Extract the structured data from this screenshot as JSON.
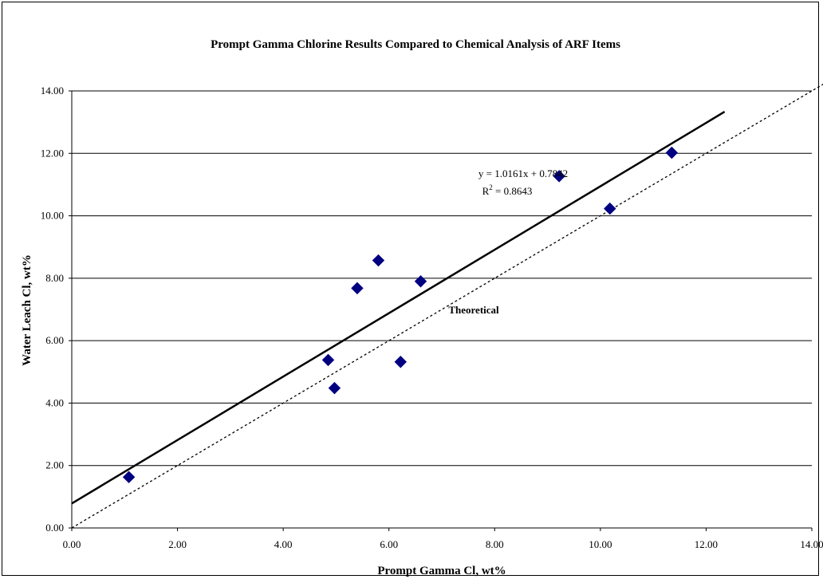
{
  "chart_data": {
    "type": "scatter",
    "title": "Prompt Gamma Chlorine Results Compared to Chemical Analysis of ARF Items",
    "xlabel": "Prompt Gamma Cl, wt%",
    "ylabel": "Water Leach Cl, wt%",
    "xlim": [
      0,
      14
    ],
    "ylim": [
      0,
      14
    ],
    "x_ticks": [
      "0.00",
      "2.00",
      "4.00",
      "6.00",
      "8.00",
      "10.00",
      "12.00",
      "14.00"
    ],
    "y_ticks": [
      "0.00",
      "2.00",
      "4.00",
      "6.00",
      "8.00",
      "10.00",
      "12.00",
      "14.00"
    ],
    "grid": "horizontal",
    "series": [
      {
        "marker": "diamond",
        "color": "#000080",
        "points": [
          {
            "x": 1.08,
            "y": 1.63
          },
          {
            "x": 4.85,
            "y": 5.38
          },
          {
            "x": 4.97,
            "y": 4.48
          },
          {
            "x": 5.4,
            "y": 7.68
          },
          {
            "x": 5.8,
            "y": 8.57
          },
          {
            "x": 6.22,
            "y": 5.32
          },
          {
            "x": 6.6,
            "y": 7.9
          },
          {
            "x": 9.22,
            "y": 11.27
          },
          {
            "x": 10.18,
            "y": 10.23
          },
          {
            "x": 11.35,
            "y": 12.02
          }
        ]
      }
    ],
    "trendline": {
      "slope": 1.0161,
      "intercept": 0.7842,
      "x_range": [
        0,
        12.35
      ],
      "color": "#000000"
    },
    "theoretical_line": {
      "slope": 1,
      "intercept": 0,
      "x_range": [
        0,
        14.6
      ],
      "style": "dotted",
      "color": "#000000"
    },
    "annotations": {
      "equation": "y = 1.0161x + 0.7842",
      "r2_prefix": "R",
      "r2_sup": "2",
      "r2_suffix": " = 0.8643",
      "theoretical_label": "Theoretical"
    }
  }
}
